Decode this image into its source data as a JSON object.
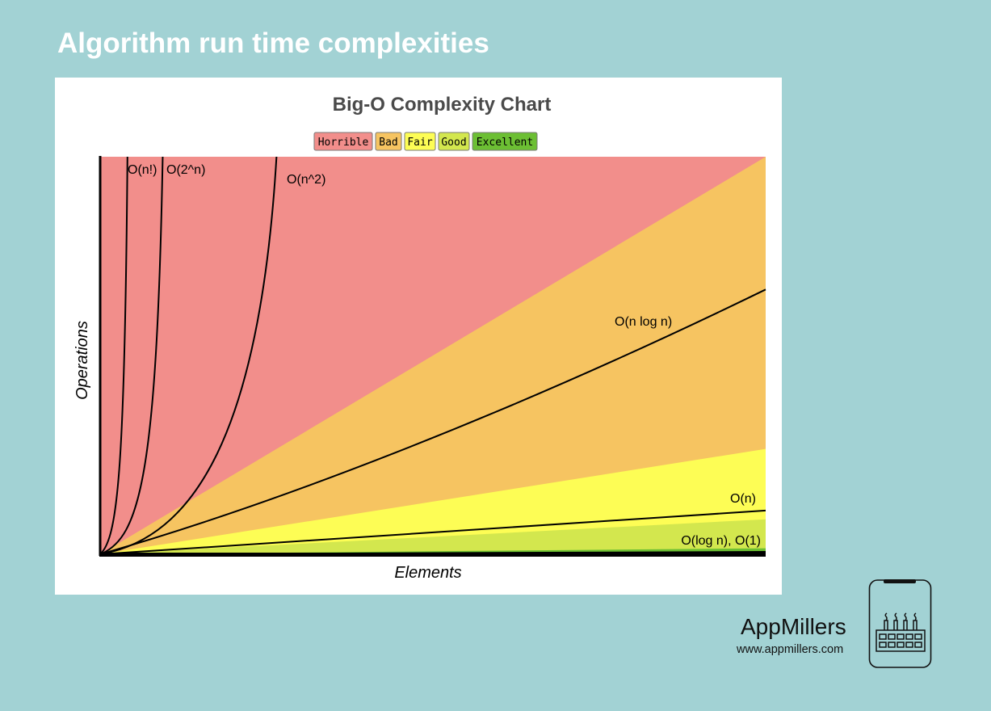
{
  "page": {
    "title": "Algorithm run time complexities"
  },
  "brand": {
    "name": "AppMillers",
    "url": "www.appmillers.com",
    "logo_icon": "factory-phone-icon"
  },
  "chart_data": {
    "type": "area",
    "title": "Big-O Complexity Chart",
    "xlabel": "Elements",
    "ylabel": "Operations",
    "legend_placement": "top-center",
    "grid": false,
    "xlim": [
      0,
      100
    ],
    "ylim": [
      0,
      100
    ],
    "zones": [
      {
        "name": "Horrible",
        "color": "#f28e8b",
        "upper": 100
      },
      {
        "name": "Bad",
        "color": "#f6c461",
        "upper_at_xmax": 100
      },
      {
        "name": "Fair",
        "color": "#fdfd55",
        "upper_at_xmax": 26.5
      },
      {
        "name": "Good",
        "color": "#d3e74e",
        "upper_at_xmax": 8.8
      },
      {
        "name": "Excellent",
        "color": "#6cbf33",
        "upper_at_xmax": 1.5
      }
    ],
    "series": [
      {
        "name": "O(n!)",
        "values": [
          [
            0,
            0
          ],
          [
            1,
            4
          ],
          [
            2,
            10
          ],
          [
            3,
            25
          ],
          [
            3.8,
            60
          ],
          [
            4.1,
            100
          ]
        ]
      },
      {
        "name": "O(2^n)",
        "values": [
          [
            0,
            0
          ],
          [
            2,
            3
          ],
          [
            4,
            8
          ],
          [
            6,
            26
          ],
          [
            7.2,
            55
          ],
          [
            9.4,
            100
          ]
        ]
      },
      {
        "name": "O(n^2)",
        "values": [
          [
            0,
            0
          ],
          [
            5,
            2.5
          ],
          [
            10,
            10
          ],
          [
            15,
            22.5
          ],
          [
            20,
            40
          ],
          [
            25,
            62.5
          ],
          [
            30,
            90
          ],
          [
            31.6,
            100
          ]
        ]
      },
      {
        "name": "O(n log n)",
        "values": [
          [
            0,
            0
          ],
          [
            20,
            15
          ],
          [
            40,
            32
          ],
          [
            60,
            49.5
          ],
          [
            80,
            67.5
          ],
          [
            100,
            66.6
          ]
        ]
      },
      {
        "name": "O(n)",
        "values": [
          [
            0,
            0
          ],
          [
            100,
            11
          ]
        ]
      },
      {
        "name": "O(log n), O(1)",
        "values": [
          [
            0,
            0
          ],
          [
            100,
            0.6
          ]
        ]
      }
    ]
  }
}
